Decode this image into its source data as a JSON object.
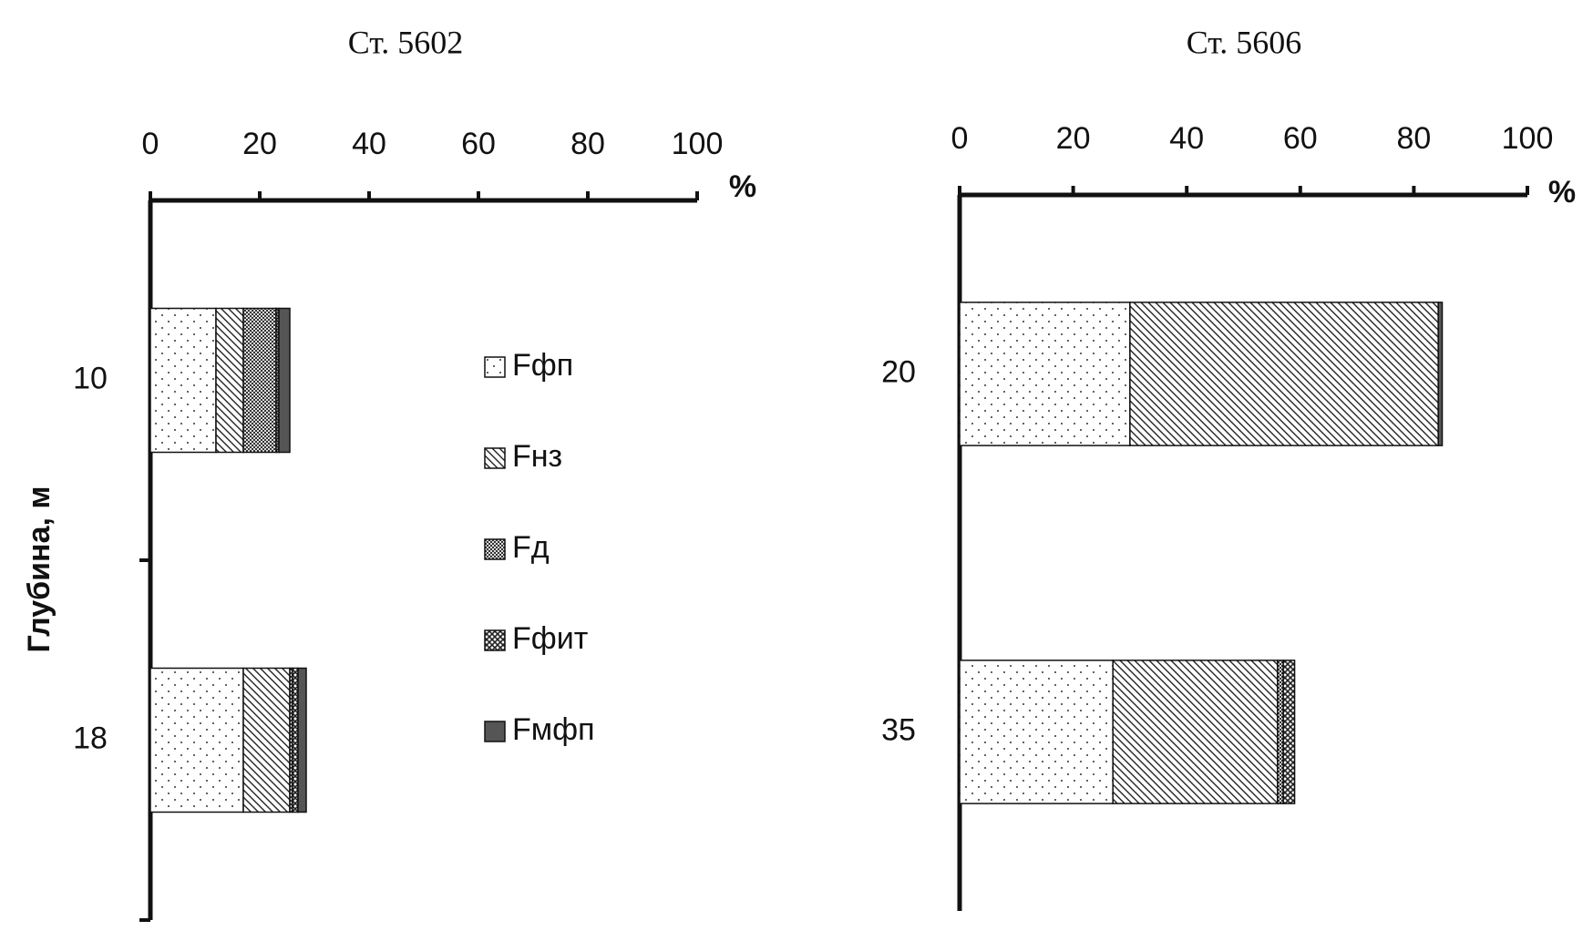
{
  "chart_data": [
    {
      "type": "stacked_barh",
      "title": "Ст. 5602",
      "y_label": "Глубина, м",
      "x_unit": "%",
      "categories": [
        "10",
        "18"
      ],
      "xlim": [
        0,
        100
      ],
      "xticks": [
        0,
        20,
        40,
        60,
        80,
        100
      ],
      "category_ticks": true,
      "legend": "right",
      "series": [
        {
          "name": "Fфп",
          "pattern": "dots",
          "values": [
            12,
            17
          ]
        },
        {
          "name": "Fнз",
          "pattern": "diagonal",
          "values": [
            5,
            8.5
          ]
        },
        {
          "name": "Fд",
          "pattern": "checker",
          "values": [
            6,
            0.5
          ]
        },
        {
          "name": "Fфит",
          "pattern": "cross",
          "values": [
            0.5,
            1
          ]
        },
        {
          "name": "Fмфп",
          "pattern": "solid",
          "values": [
            2,
            1.5
          ]
        }
      ]
    },
    {
      "type": "stacked_barh",
      "title": "Ст. 5606",
      "x_unit": "%",
      "categories": [
        "20",
        "35"
      ],
      "xlim": [
        0,
        100
      ],
      "xticks": [
        0,
        20,
        40,
        60,
        80,
        100
      ],
      "category_ticks": false,
      "series": [
        {
          "pattern": "dots",
          "values": [
            30,
            27
          ]
        },
        {
          "pattern": "diagonal",
          "values": [
            54.3,
            29
          ]
        },
        {
          "pattern": "checker",
          "values": [
            0,
            1
          ]
        },
        {
          "pattern": "cross",
          "values": [
            0,
            2
          ]
        },
        {
          "pattern": "solid",
          "values": [
            0.7,
            0
          ]
        }
      ]
    }
  ]
}
